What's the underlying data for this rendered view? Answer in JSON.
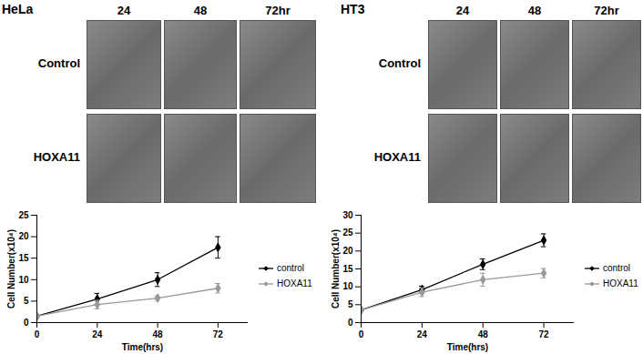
{
  "chart_data": [
    {
      "type": "line",
      "x_label": "Time(hrs)",
      "y_label": "Cell Number(x10⁴)",
      "x": [
        0,
        24,
        48,
        72
      ],
      "xlim": [
        0,
        84
      ],
      "xticks": [
        0,
        24,
        48,
        72
      ],
      "ylim": [
        0,
        25
      ],
      "yticks": [
        0,
        5,
        10,
        15,
        20,
        25
      ],
      "legend": "right",
      "grid": false,
      "series": [
        {
          "name": "control",
          "color": "#000000",
          "marker": "diamond",
          "values": [
            1.5,
            5.5,
            10,
            17.5
          ],
          "errors": [
            0.3,
            1.3,
            1.6,
            2.5
          ]
        },
        {
          "name": "HOXA11",
          "color": "#999999",
          "marker": "diamond",
          "values": [
            1.5,
            4.2,
            5.7,
            8
          ],
          "errors": [
            0.2,
            1.0,
            0.5,
            1.1
          ]
        }
      ]
    },
    {
      "type": "line",
      "x_label": "Time(hrs)",
      "y_label": "Cell Number(x10⁴)",
      "x": [
        0,
        24,
        48,
        72
      ],
      "xlim": [
        0,
        84
      ],
      "xticks": [
        0,
        24,
        48,
        72
      ],
      "ylim": [
        0,
        30
      ],
      "yticks": [
        0,
        5,
        10,
        15,
        20,
        25,
        30
      ],
      "legend": "right",
      "grid": false,
      "series": [
        {
          "name": "control",
          "color": "#000000",
          "marker": "diamond",
          "values": [
            3.5,
            9.2,
            16.3,
            23
          ],
          "errors": [
            0.3,
            1.0,
            1.5,
            1.8
          ]
        },
        {
          "name": "HOXA11",
          "color": "#999999",
          "marker": "diamond",
          "values": [
            3.5,
            8.5,
            12,
            13.8
          ],
          "errors": [
            0.3,
            1.2,
            1.8,
            1.3
          ]
        }
      ]
    }
  ],
  "image_panels": [
    {
      "title": "HeLa",
      "columns": [
        "24",
        "48",
        "72hr"
      ],
      "rows": [
        "Control",
        "HOXA11"
      ]
    },
    {
      "title": "HT3",
      "columns": [
        "24",
        "48",
        "72hr"
      ],
      "rows": [
        "Control",
        "HOXA11"
      ]
    }
  ]
}
